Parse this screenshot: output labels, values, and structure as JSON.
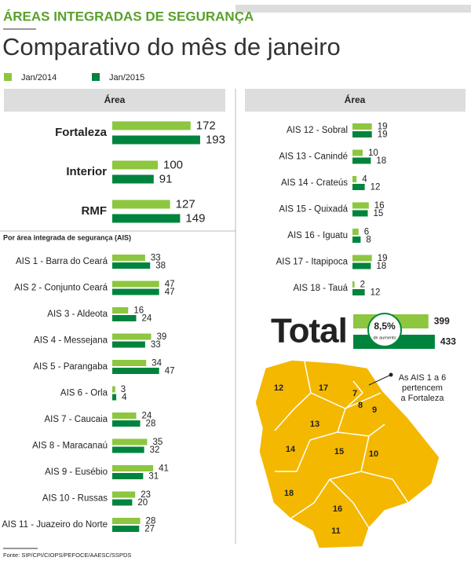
{
  "header": {
    "kicker": "ÁREAS INTEGRADAS DE SEGURANÇA",
    "title": "Comparativo do mês de janeiro",
    "source": "Fonte: SIP/CPI/CIOPS/PEFOCE/AAESC/SSPDS"
  },
  "chart_data": [
    {
      "type": "bar",
      "orientation": "horizontal",
      "header": "Área",
      "categories": [
        "Fortaleza",
        "Interior",
        "RMF"
      ],
      "series": [
        {
          "name": "Jan/2014",
          "color": "#8dc63f",
          "values": [
            172,
            100,
            127
          ]
        },
        {
          "name": "Jan/2015",
          "color": "#00843d",
          "values": [
            193,
            91,
            149
          ]
        }
      ]
    },
    {
      "type": "bar",
      "orientation": "horizontal",
      "title": "Por área integrada de segurança (AIS)",
      "categories": [
        "AIS 1 - Barra do Ceará",
        "AIS 2 - Conjunto Ceará",
        "AIS 3 - Aldeota",
        "AIS 4 - Messejana",
        "AIS 5 - Parangaba",
        "AIS 6 - Orla",
        "AIS 7 - Caucaia",
        "AIS 8 - Maracanaú",
        "AIS 9 - Eusébio",
        "AIS 10 - Russas",
        "AIS 11 - Juazeiro do Norte"
      ],
      "series": [
        {
          "values": [
            33,
            47,
            16,
            39,
            34,
            3,
            24,
            35,
            41,
            23,
            28
          ]
        },
        {
          "values": [
            38,
            47,
            24,
            33,
            47,
            4,
            28,
            32,
            31,
            20,
            27
          ]
        }
      ]
    },
    {
      "type": "bar",
      "orientation": "horizontal",
      "header": "Área",
      "categories": [
        "AIS 12 - Sobral",
        "AIS 13 - Canindé",
        "AIS 14 - Crateús",
        "AIS 15 - Quixadá",
        "AIS 16 - Iguatu",
        "AIS 17 - Itapipoca",
        "AIS 18 - Tauá"
      ],
      "series": [
        {
          "values": [
            19,
            10,
            4,
            16,
            6,
            19,
            2
          ]
        },
        {
          "values": [
            19,
            18,
            12,
            15,
            8,
            18,
            12
          ]
        }
      ]
    },
    {
      "type": "bar",
      "orientation": "horizontal",
      "title": "Total",
      "annotation": "8,5%",
      "annotation_note": "de aumento",
      "series": [
        {
          "values": [
            399
          ]
        },
        {
          "values": [
            433
          ]
        }
      ]
    }
  ],
  "map": {
    "regions": [
      "12",
      "17",
      "7",
      "8",
      "9",
      "13",
      "14",
      "15",
      "10",
      "18",
      "16",
      "11"
    ],
    "note": [
      "As AIS 1 a 6",
      "pertencem",
      "a Fortaleza"
    ]
  }
}
